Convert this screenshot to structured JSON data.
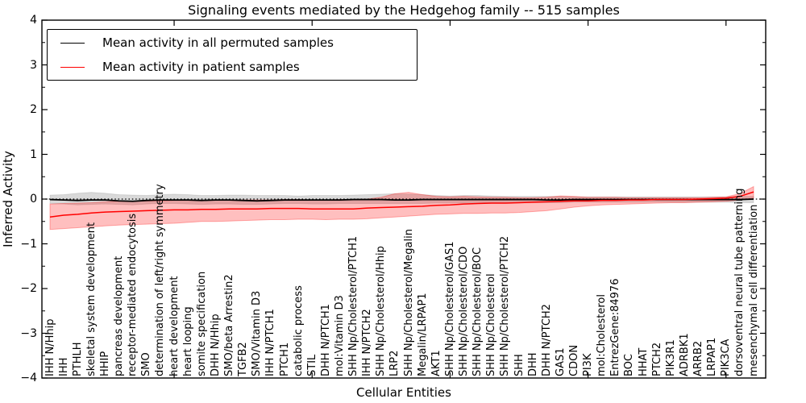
{
  "title": "Signaling events mediated by the Hedgehog family -- 515 samples",
  "legend": {
    "items": [
      {
        "label": "Mean activity in all permuted samples",
        "color": "#000000"
      },
      {
        "label": "Mean activity in patient samples",
        "color": "#ff0000"
      }
    ]
  },
  "colors": {
    "permuted_line": "#000000",
    "permuted_band": "rgba(0,0,0,0.15)",
    "patient_line": "#ff0000",
    "patient_band": "rgba(255,0,0,0.25)",
    "axes": "#000000"
  },
  "chart_data": {
    "type": "line",
    "title": "Signaling events mediated by the Hedgehog family -- 515 samples",
    "xlabel": "Cellular Entities",
    "ylabel": "Inferred Activity",
    "ylim": [
      -4,
      4
    ],
    "yticks_major": [
      4,
      3,
      2,
      1,
      0,
      -1,
      -2,
      -3,
      -4
    ],
    "ytick_minor_step": 0.5,
    "xtick_indices": [
      9,
      19,
      29,
      39,
      49
    ],
    "zero_line": {
      "value": 0,
      "style": "dotted",
      "color": "#000000"
    },
    "grid": false,
    "legend_position": "upper left",
    "categories": [
      "IHH N/Hhip",
      "IHH",
      "PTHLH",
      "skeletal system development",
      "HHIP",
      "pancreas development",
      "receptor-mediated endocytosis",
      "SMO",
      "determination of left/right symmetry",
      "heart development",
      "heart looping",
      "somite specification",
      "DHH N/Hhip",
      "SMO/beta Arrestin2",
      "TGFB2",
      "SMO/Vitamin D3",
      "IHH N/PTCH1",
      "PTCH1",
      "catabolic process",
      "STIL",
      "DHH N/PTCH1",
      "mol:Vitamin D3",
      "SHH Np/Cholesterol/PTCH1",
      "IHH N/PTCH2",
      "SHH Np/Cholesterol/Hhip",
      "LRP2",
      "SHH Np/Cholesterol/Megalin",
      "Megalin/LRPAP1",
      "AKT1",
      "SHH Np/Cholesterol/GAS1",
      "SHH Np/Cholesterol/CDO",
      "SHH Np/Cholesterol/BOC",
      "SHH Np/Cholesterol",
      "SHH Np/Cholesterol/PTCH2",
      "SHH",
      "DHH",
      "DHH N/PTCH2",
      "GAS1",
      "CDON",
      "PI3K",
      "mol:Cholesterol",
      "EntrezGene:84976",
      "BOC",
      "HHAT",
      "PTCH2",
      "PIK3R1",
      "ADRBK1",
      "ARRB2",
      "LRPAP1",
      "PIK3CA",
      "dorsoventral neural tube patterning",
      "mesenchymal cell differentiation"
    ],
    "series": [
      {
        "name": "Mean activity in all permuted samples",
        "color": "#000000",
        "values": [
          -0.01,
          -0.02,
          -0.03,
          -0.02,
          -0.02,
          -0.04,
          -0.05,
          -0.03,
          -0.02,
          -0.02,
          -0.02,
          -0.03,
          -0.02,
          -0.02,
          -0.03,
          -0.04,
          -0.03,
          -0.02,
          -0.02,
          -0.02,
          -0.02,
          -0.02,
          -0.01,
          -0.01,
          -0.01,
          -0.02,
          -0.02,
          -0.01,
          -0.01,
          -0.01,
          -0.01,
          -0.01,
          -0.01,
          -0.01,
          -0.01,
          -0.01,
          -0.02,
          -0.02,
          -0.01,
          -0.01,
          -0.01,
          -0.01,
          -0.01,
          -0.01,
          -0.01,
          -0.01,
          -0.01,
          -0.01,
          -0.01,
          -0.01,
          -0.01,
          0.0
        ],
        "band_upper": [
          0.09,
          0.1,
          0.13,
          0.15,
          0.13,
          0.1,
          0.09,
          0.08,
          0.1,
          0.11,
          0.1,
          0.08,
          0.08,
          0.09,
          0.09,
          0.08,
          0.08,
          0.08,
          0.07,
          0.08,
          0.08,
          0.08,
          0.09,
          0.1,
          0.11,
          0.12,
          0.11,
          0.1,
          0.08,
          0.07,
          0.08,
          0.08,
          0.07,
          0.06,
          0.06,
          0.06,
          0.06,
          0.06,
          0.05,
          0.05,
          0.05,
          0.05,
          0.05,
          0.05,
          0.05,
          0.05,
          0.05,
          0.05,
          0.05,
          0.05,
          0.06,
          0.06
        ],
        "band_lower": [
          -0.1,
          -0.11,
          -0.13,
          -0.12,
          -0.11,
          -0.12,
          -0.13,
          -0.11,
          -0.1,
          -0.1,
          -0.11,
          -0.12,
          -0.11,
          -0.11,
          -0.12,
          -0.12,
          -0.11,
          -0.1,
          -0.1,
          -0.11,
          -0.11,
          -0.1,
          -0.1,
          -0.1,
          -0.1,
          -0.1,
          -0.1,
          -0.1,
          -0.09,
          -0.09,
          -0.09,
          -0.08,
          -0.08,
          -0.08,
          -0.08,
          -0.08,
          -0.08,
          -0.08,
          -0.07,
          -0.07,
          -0.07,
          -0.07,
          -0.07,
          -0.07,
          -0.06,
          -0.07,
          -0.07,
          -0.07,
          -0.07,
          -0.07,
          -0.08,
          -0.08
        ]
      },
      {
        "name": "Mean activity in patient samples",
        "color": "#ff0000",
        "values": [
          -0.4,
          -0.36,
          -0.34,
          -0.31,
          -0.29,
          -0.28,
          -0.27,
          -0.26,
          -0.25,
          -0.24,
          -0.24,
          -0.23,
          -0.23,
          -0.22,
          -0.22,
          -0.22,
          -0.21,
          -0.21,
          -0.21,
          -0.22,
          -0.22,
          -0.22,
          -0.22,
          -0.2,
          -0.19,
          -0.18,
          -0.17,
          -0.16,
          -0.14,
          -0.13,
          -0.11,
          -0.1,
          -0.09,
          -0.09,
          -0.08,
          -0.07,
          -0.06,
          -0.05,
          -0.04,
          -0.04,
          -0.03,
          -0.03,
          -0.02,
          -0.02,
          -0.01,
          -0.01,
          -0.01,
          0.0,
          0.01,
          0.02,
          0.06,
          0.16
        ],
        "band_upper": [
          -0.11,
          -0.1,
          -0.09,
          -0.08,
          -0.06,
          -0.05,
          -0.05,
          -0.04,
          -0.04,
          -0.03,
          -0.03,
          -0.03,
          -0.02,
          -0.02,
          -0.02,
          -0.02,
          -0.02,
          -0.01,
          -0.01,
          -0.02,
          -0.02,
          -0.01,
          -0.01,
          0.0,
          0.04,
          0.12,
          0.15,
          0.1,
          0.06,
          0.05,
          0.06,
          0.05,
          0.04,
          0.04,
          0.03,
          0.03,
          0.04,
          0.07,
          0.06,
          0.04,
          0.04,
          0.04,
          0.03,
          0.03,
          0.03,
          0.03,
          0.03,
          0.03,
          0.04,
          0.05,
          0.12,
          0.28
        ],
        "band_lower": [
          -0.68,
          -0.66,
          -0.64,
          -0.62,
          -0.6,
          -0.58,
          -0.57,
          -0.56,
          -0.55,
          -0.54,
          -0.52,
          -0.5,
          -0.5,
          -0.49,
          -0.48,
          -0.47,
          -0.46,
          -0.46,
          -0.45,
          -0.45,
          -0.46,
          -0.45,
          -0.45,
          -0.44,
          -0.42,
          -0.4,
          -0.38,
          -0.36,
          -0.34,
          -0.33,
          -0.32,
          -0.32,
          -0.31,
          -0.31,
          -0.3,
          -0.28,
          -0.26,
          -0.22,
          -0.18,
          -0.15,
          -0.13,
          -0.12,
          -0.11,
          -0.1,
          -0.09,
          -0.08,
          -0.08,
          -0.07,
          -0.06,
          -0.05,
          -0.02,
          0.02
        ]
      }
    ]
  }
}
